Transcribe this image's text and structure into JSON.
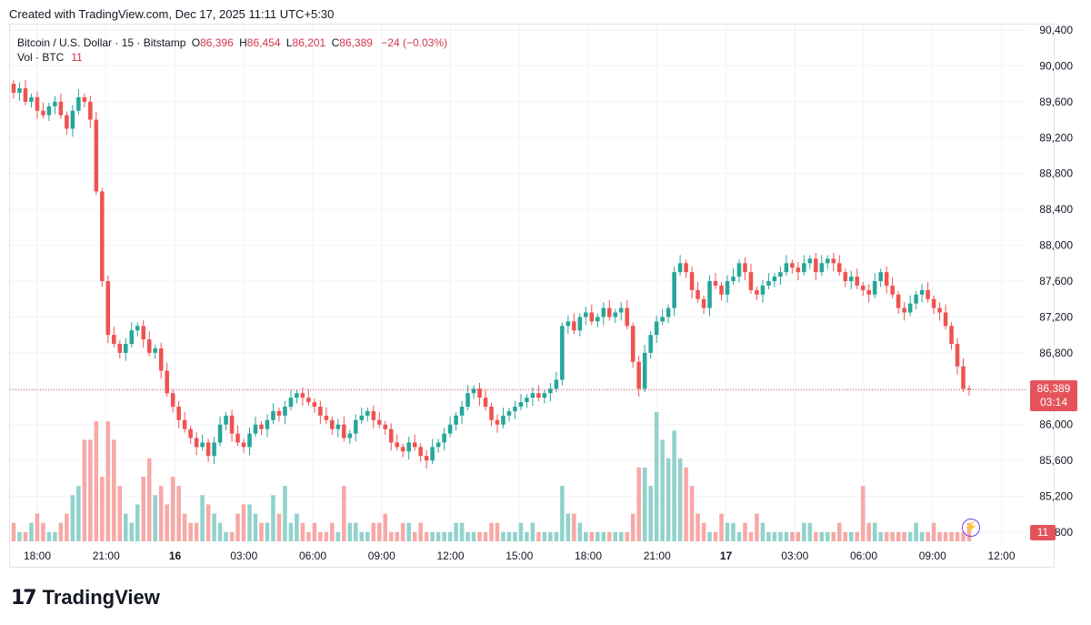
{
  "header": {
    "created_text": "Created with TradingView.com, Dec 17, 2025 11:11 UTC+5:30"
  },
  "legend": {
    "symbol": "Bitcoin / U.S. Dollar · 15 · Bitstamp",
    "o_label": "O",
    "o_value": "86,396",
    "h_label": "H",
    "h_value": "86,454",
    "l_label": "L",
    "l_value": "86,201",
    "c_label": "C",
    "c_value": "86,389",
    "change": "−24 (−0.03%)",
    "vol_label": "Vol · BTC",
    "vol_value": "11"
  },
  "price_tag": {
    "price": "86,389",
    "countdown": "03:14"
  },
  "vol_tag": "11",
  "brand": {
    "name": "TradingView",
    "logo_icon": "tradingview-logo-icon"
  },
  "colors": {
    "up": "#26a69a",
    "down": "#ef5350",
    "up_vol": "#92d2cc",
    "down_vol": "#f7a9a7",
    "grid": "#f0f3fa",
    "last_price_line": "#e5535a"
  },
  "chart_data": {
    "type": "candlestick",
    "title": "Bitcoin / U.S. Dollar · 15 · Bitstamp",
    "x_tick_labels": [
      "18:00",
      "21:00",
      "16",
      "03:00",
      "06:00",
      "09:00",
      "12:00",
      "15:00",
      "18:00",
      "21:00",
      "17",
      "03:00",
      "06:00",
      "09:00",
      "12:00"
    ],
    "x_tick_hours": [
      0,
      3,
      6,
      9,
      12,
      15,
      18,
      21,
      24,
      27,
      30,
      33,
      36,
      39,
      42
    ],
    "y_tick_labels": [
      "90,400",
      "90,000",
      "89,600",
      "89,200",
      "88,800",
      "88,400",
      "88,000",
      "87,600",
      "87,200",
      "86,800",
      "86,400",
      "86,000",
      "85,600",
      "85,200",
      "84,800"
    ],
    "y_ticks": [
      90400,
      90000,
      89600,
      89200,
      88800,
      88400,
      88000,
      87600,
      87200,
      86800,
      86400,
      86000,
      85600,
      85200,
      84800
    ],
    "y_range": [
      84600,
      90400
    ],
    "last_price": 86389,
    "interval_minutes": 15,
    "series": [
      {
        "name": "price_path",
        "values": [
          89700,
          89750,
          89600,
          89650,
          89500,
          89450,
          89550,
          89600,
          89450,
          89300,
          89500,
          89650,
          89600,
          89400,
          88600,
          87600,
          87000,
          86900,
          86800,
          86900,
          87050,
          87100,
          86950,
          86800,
          86850,
          86600,
          86350,
          86200,
          86050,
          85950,
          85850,
          85750,
          85800,
          85650,
          85800,
          86000,
          86100,
          85900,
          85800,
          85750,
          85900,
          86000,
          85950,
          86050,
          86150,
          86100,
          86200,
          86300,
          86350,
          86300,
          86250,
          86200,
          86100,
          86050,
          85950,
          86000,
          85850,
          85900,
          86050,
          86100,
          86150,
          86050,
          86000,
          85950,
          85800,
          85750,
          85700,
          85800,
          85750,
          85650,
          85600,
          85750,
          85800,
          85900,
          86000,
          86100,
          86200,
          86350,
          86400,
          86300,
          86200,
          86050,
          86000,
          86100,
          86150,
          86200,
          86250,
          86300,
          86350,
          86300,
          86350,
          86400,
          86500,
          87100,
          87150,
          87050,
          87200,
          87250,
          87150,
          87200,
          87300,
          87200,
          87250,
          87300,
          87100,
          86700,
          86400,
          86800,
          87000,
          87150,
          87200,
          87300,
          87700,
          87800,
          87700,
          87500,
          87400,
          87300,
          87600,
          87550,
          87450,
          87600,
          87650,
          87800,
          87700,
          87500,
          87450,
          87550,
          87600,
          87650,
          87700,
          87800,
          87750,
          87700,
          87800,
          87850,
          87700,
          87800,
          87850,
          87800,
          87700,
          87600,
          87650,
          87550,
          87500,
          87450,
          87600,
          87700,
          87550,
          87450,
          87300,
          87250,
          87350,
          87450,
          87500,
          87400,
          87300,
          87250,
          87100,
          86900,
          86650,
          86400,
          86389
        ]
      },
      {
        "name": "volume",
        "values": [
          2,
          1,
          1,
          2,
          3,
          2,
          1,
          1,
          2,
          3,
          5,
          6,
          11,
          11,
          13,
          7,
          13,
          11,
          6,
          3,
          2,
          4,
          7,
          9,
          5,
          6,
          4,
          7,
          6,
          3,
          2,
          2,
          5,
          4,
          3,
          2,
          1,
          1,
          3,
          4,
          4,
          3,
          2,
          2,
          5,
          3,
          6,
          2,
          3,
          2,
          1,
          2,
          1,
          1,
          2,
          1,
          6,
          2,
          2,
          1,
          1,
          2,
          2,
          3,
          1,
          1,
          2,
          2,
          1,
          2,
          1,
          1,
          1,
          1,
          1,
          2,
          2,
          1,
          1,
          1,
          1,
          2,
          2,
          1,
          1,
          1,
          2,
          1,
          2,
          1,
          1,
          1,
          1,
          6,
          3,
          3,
          2,
          1,
          1,
          1,
          1,
          1,
          1,
          1,
          1,
          3,
          8,
          8,
          6,
          14,
          11,
          9,
          12,
          9,
          8,
          6,
          3,
          2,
          1,
          1,
          3,
          2,
          2,
          1,
          2,
          1,
          3,
          2,
          1,
          1,
          1,
          1,
          1,
          1,
          2,
          2,
          1,
          1,
          1,
          1,
          2,
          1,
          1,
          1,
          6,
          2,
          2,
          1,
          1,
          1,
          1,
          1,
          1,
          2,
          1,
          1,
          2,
          1,
          1,
          1,
          1,
          1,
          2,
          2,
          1,
          1,
          2,
          2,
          11
        ]
      }
    ],
    "xlabel": "",
    "ylabel": "",
    "grid": true,
    "legend_position": "top-left"
  }
}
